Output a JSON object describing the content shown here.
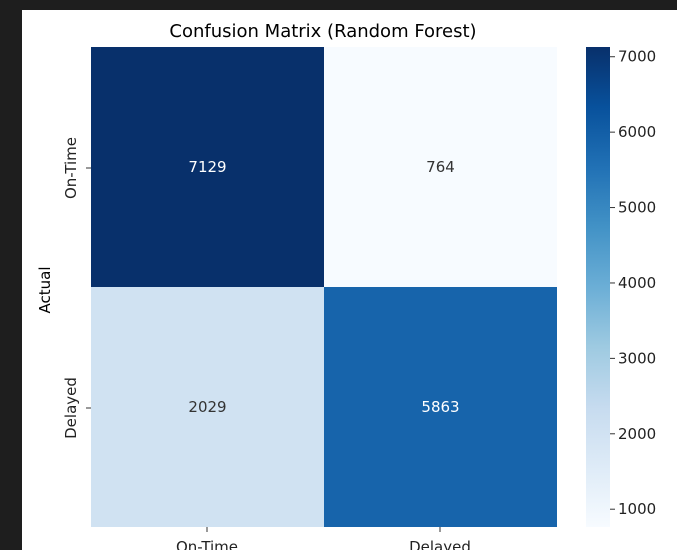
{
  "chart_data": {
    "type": "heatmap",
    "title": "Confusion Matrix (Random Forest)",
    "ylabel": "Actual",
    "xlabel": "",
    "row_labels": [
      "On-Time",
      "Delayed"
    ],
    "col_labels": [
      "On-Time",
      "Delayed"
    ],
    "values": [
      [
        7129,
        764
      ],
      [
        2029,
        5863
      ]
    ],
    "colormap": "Blues",
    "colorbar": {
      "range": [
        764,
        7129
      ],
      "ticks": [
        1000,
        2000,
        3000,
        4000,
        5000,
        6000,
        7000
      ],
      "tick_labels": [
        "1000",
        "2000",
        "3000",
        "4000",
        "5000",
        "6000",
        "7000"
      ]
    },
    "cell_text_colors": {
      "dark": "#ffffff",
      "light": "#333333"
    }
  }
}
